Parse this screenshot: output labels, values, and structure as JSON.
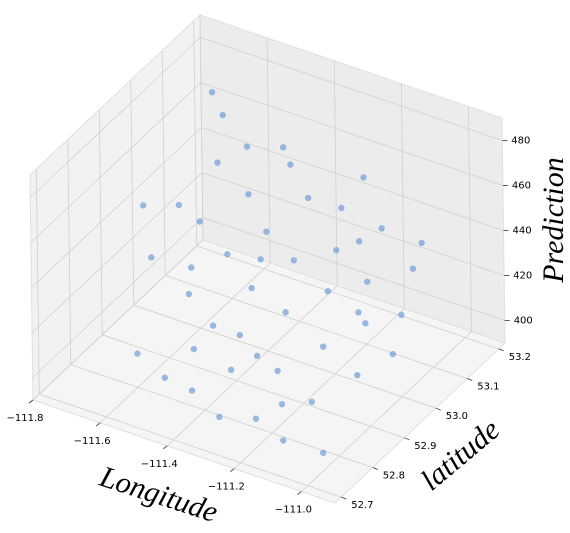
{
  "chart_data": {
    "type": "scatter3d",
    "x_label": "Longitude",
    "y_label": "latitude",
    "z_label": "Prediction",
    "color": "#6f9ed8",
    "x": [
      -111.72,
      -111.68,
      -111.65,
      -111.62,
      -111.58,
      -111.55,
      -111.52,
      -111.5,
      -111.47,
      -111.44,
      -111.42,
      -111.4,
      -111.37,
      -111.35,
      -111.32,
      -111.3,
      -111.27,
      -111.25,
      -111.22,
      -111.2,
      -111.18,
      -111.15,
      -111.12,
      -111.1,
      -111.08,
      -111.05,
      -111.02,
      -111.0,
      -110.98,
      -111.6,
      -111.5,
      -111.4,
      -111.3,
      -111.2,
      -111.1,
      -111.7,
      -111.65,
      -111.45,
      -111.35,
      -111.25,
      -111.15,
      -111.05,
      -110.95,
      -111.55,
      -111.48,
      -111.38,
      -111.28,
      -111.18,
      -111.08,
      -111.0
    ],
    "y": [
      52.95,
      53.02,
      52.9,
      53.08,
      52.98,
      53.1,
      52.88,
      53.05,
      52.95,
      53.12,
      52.85,
      53.0,
      52.92,
      53.08,
      52.8,
      52.98,
      53.1,
      52.9,
      53.03,
      52.82,
      52.96,
      53.1,
      52.88,
      53.0,
      52.8,
      52.94,
      53.06,
      52.86,
      52.98,
      52.8,
      52.78,
      52.76,
      52.74,
      52.75,
      52.73,
      53.15,
      53.13,
      52.82,
      52.86,
      53.15,
      52.78,
      53.12,
      52.92,
      52.92,
      53.14,
      52.96,
      52.84,
      53.06,
      52.95,
      52.75
    ],
    "values": [
      445,
      438,
      432,
      452,
      441,
      460,
      425,
      448,
      436,
      455,
      420,
      443,
      430,
      450,
      412,
      438,
      447,
      428,
      440,
      415,
      433,
      444,
      422,
      436,
      410,
      428,
      438,
      418,
      430,
      405,
      402,
      404,
      400,
      403,
      401,
      470,
      465,
      412,
      418,
      455,
      408,
      440,
      422,
      430,
      458,
      437,
      415,
      442,
      430,
      398
    ],
    "xlim": [
      -111.8,
      -110.9
    ],
    "ylim": [
      52.68,
      53.22
    ],
    "zlim": [
      390,
      490
    ],
    "xticks": [
      {
        "value": -111.8,
        "label": "−111.8"
      },
      {
        "value": -111.6,
        "label": "−111.6"
      },
      {
        "value": -111.4,
        "label": "−111.4"
      },
      {
        "value": -111.2,
        "label": "−111.2"
      },
      {
        "value": -111.0,
        "label": "−111.0"
      }
    ],
    "yticks": [
      52.7,
      52.8,
      52.9,
      {
        "value": 53.0,
        "label": "53.0"
      },
      53.1,
      53.2
    ],
    "zticks": [
      400,
      420,
      440,
      460,
      480
    ],
    "grid": true
  }
}
